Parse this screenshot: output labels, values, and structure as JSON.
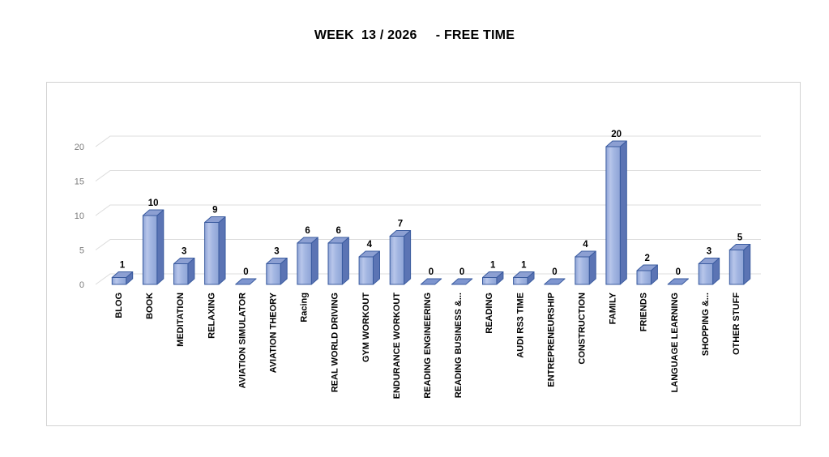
{
  "chart_data": {
    "type": "bar",
    "style": "3d-column",
    "title": "WEEK  13 / 2026     - FREE TIME",
    "categories": [
      "BLOG",
      "BOOK",
      "MEDITATION",
      "RELAXING",
      "AVIATION SIMULATOR",
      "AVIATION THEORY",
      "Racing",
      "REAL WORLD DRIVING",
      "GYM WORKOUT",
      "ENDURANCE WORKOUT",
      "READING ENGINEERING",
      "READING BUSINESS &...",
      "READING",
      "AUDI RS3 TIME",
      "ENTREPRENEURSHIP",
      "CONSTRUCTION",
      "FAMILY",
      "FRIENDS",
      "LANGUAGE LEARNING",
      "SHOPPING &...",
      "OTHER STUFF"
    ],
    "values": [
      1,
      10,
      3,
      9,
      0,
      3,
      6,
      6,
      4,
      7,
      0,
      0,
      1,
      1,
      0,
      4,
      20,
      2,
      0,
      3,
      5
    ],
    "yticks": [
      0,
      5,
      10,
      15,
      20
    ],
    "ylim": [
      0,
      21
    ],
    "xlabel": "",
    "ylabel": "",
    "grid": true,
    "legend": false,
    "data_labels": true,
    "colors": {
      "bar_face_edge": "#8ea4d6",
      "bar_face_light": "#b8c6ea",
      "bar_face_mid": "#a3b6e2",
      "bar_side": "#5b74b4",
      "bar_top": "#8c9fd2",
      "bar_flat_zero": "#7e95cf",
      "bar_stroke": "#3a5b9f",
      "gridline": "#dcdcdc",
      "tick_label": "#7a7a7a",
      "data_label": "#000000",
      "category_label": "#000000",
      "frame_border": "#d2d2d2",
      "title": "#000000"
    }
  }
}
